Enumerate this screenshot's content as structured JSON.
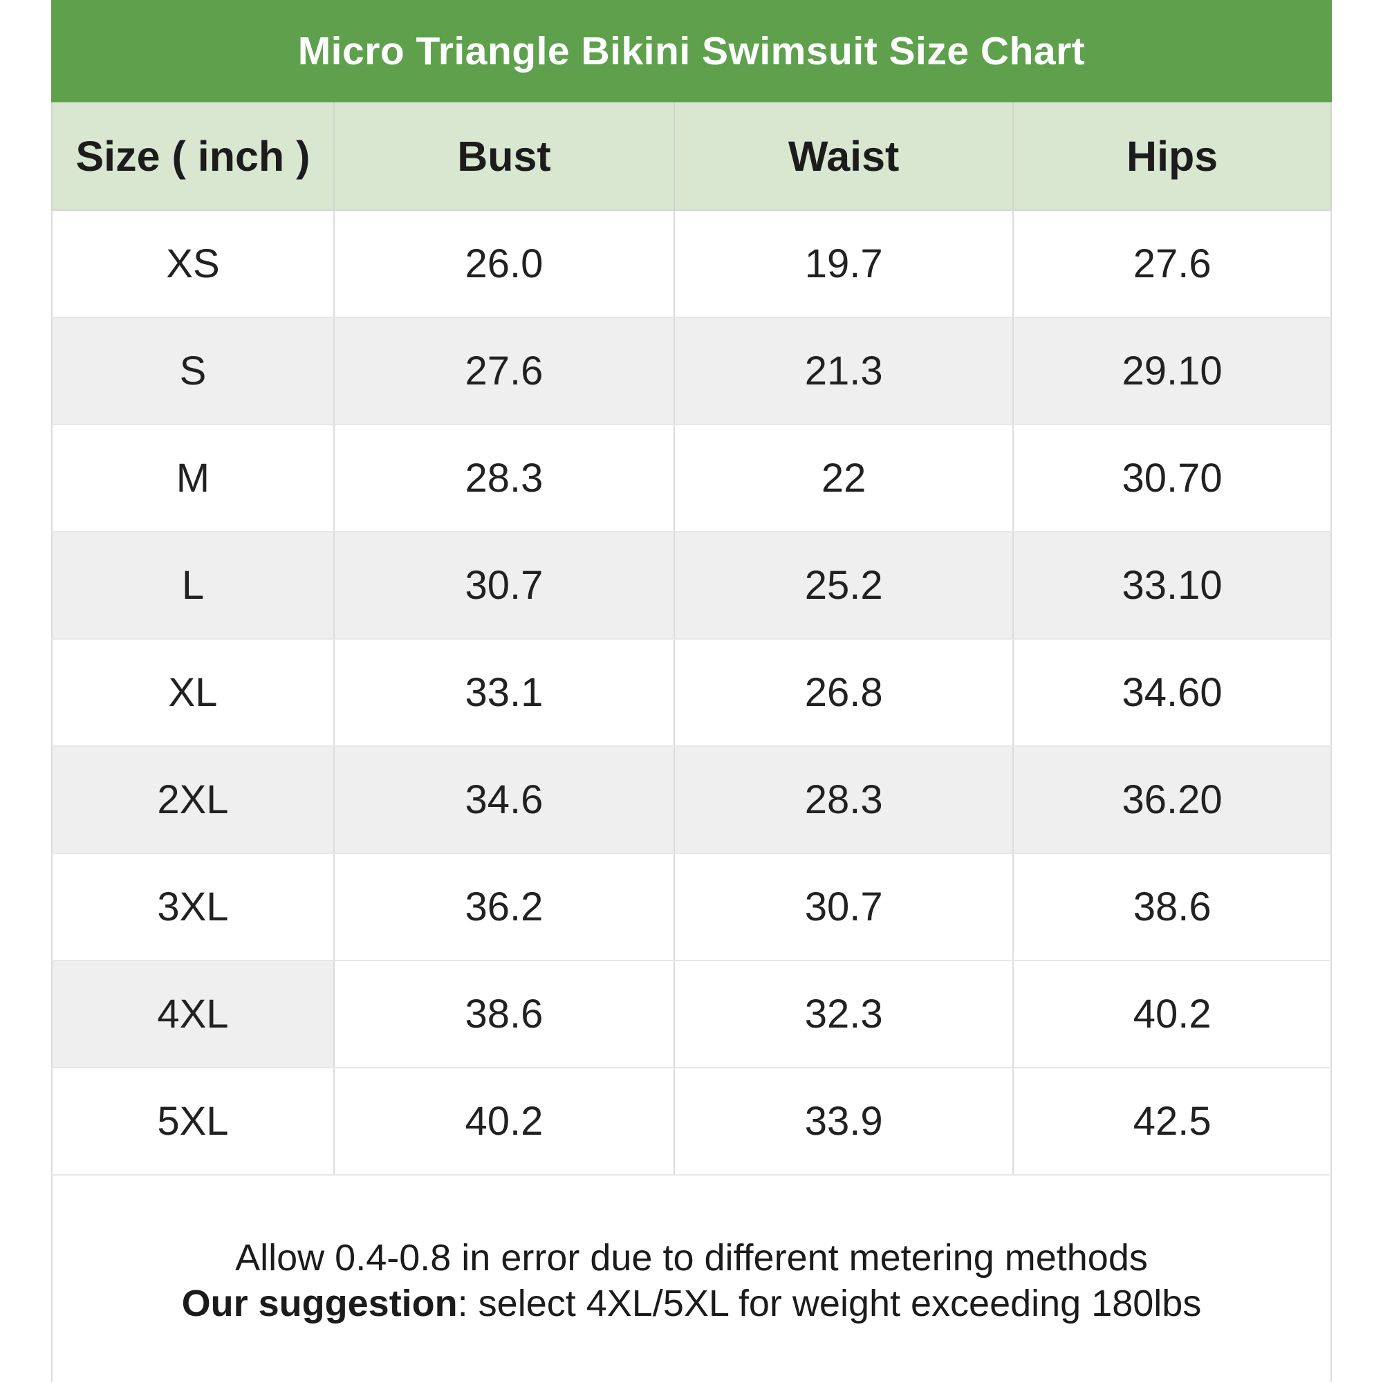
{
  "title": "Micro Triangle Bikini Swimsuit Size Chart",
  "colors": {
    "title_bar_bg": "#5fa04d",
    "title_text": "#ffffff",
    "header_row_bg": "#d9e7d1",
    "zebra_row_bg": "#efefef",
    "row_bg": "#ffffff",
    "text": "#212121"
  },
  "table": {
    "columns": [
      "Size ( inch )",
      "Bust",
      "Waist",
      "Hips"
    ],
    "rows": [
      {
        "size": "XS",
        "bust": "26.0",
        "waist": "19.7",
        "hips": "27.6"
      },
      {
        "size": "S",
        "bust": "27.6",
        "waist": "21.3",
        "hips": "29.10"
      },
      {
        "size": "M",
        "bust": "28.3",
        "waist": "22",
        "hips": "30.70"
      },
      {
        "size": "L",
        "bust": "30.7",
        "waist": "25.2",
        "hips": "33.10"
      },
      {
        "size": "XL",
        "bust": "33.1",
        "waist": "26.8",
        "hips": "34.60"
      },
      {
        "size": "2XL",
        "bust": "34.6",
        "waist": "28.3",
        "hips": "36.20"
      },
      {
        "size": "3XL",
        "bust": "36.2",
        "waist": "30.7",
        "hips": "38.6"
      },
      {
        "size": "4XL",
        "bust": "38.6",
        "waist": "32.3",
        "hips": "40.2"
      },
      {
        "size": "5XL",
        "bust": "40.2",
        "waist": "33.9",
        "hips": "42.5"
      }
    ]
  },
  "footer": {
    "line1": "Allow 0.4-0.8 in error due to different metering methods",
    "line2_bold": "Our suggestion",
    "line2_rest": ": select 4XL/5XL for weight exceeding 180lbs"
  },
  "chart_data": {
    "type": "table",
    "title": "Micro Triangle Bikini Swimsuit Size Chart",
    "unit": "inch",
    "columns": [
      "Size ( inch )",
      "Bust",
      "Waist",
      "Hips"
    ],
    "rows": [
      [
        "XS",
        "26.0",
        "19.7",
        "27.6"
      ],
      [
        "S",
        "27.6",
        "21.3",
        "29.10"
      ],
      [
        "M",
        "28.3",
        "22",
        "30.70"
      ],
      [
        "L",
        "30.7",
        "25.2",
        "33.10"
      ],
      [
        "XL",
        "33.1",
        "26.8",
        "34.60"
      ],
      [
        "2XL",
        "34.6",
        "28.3",
        "36.20"
      ],
      [
        "3XL",
        "36.2",
        "30.7",
        "38.6"
      ],
      [
        "4XL",
        "38.6",
        "32.3",
        "40.2"
      ],
      [
        "5XL",
        "40.2",
        "33.9",
        "42.5"
      ]
    ],
    "notes": [
      "Allow 0.4-0.8 in error due to different metering methods",
      "Our suggestion: select 4XL/5XL for weight exceeding 180lbs"
    ]
  }
}
